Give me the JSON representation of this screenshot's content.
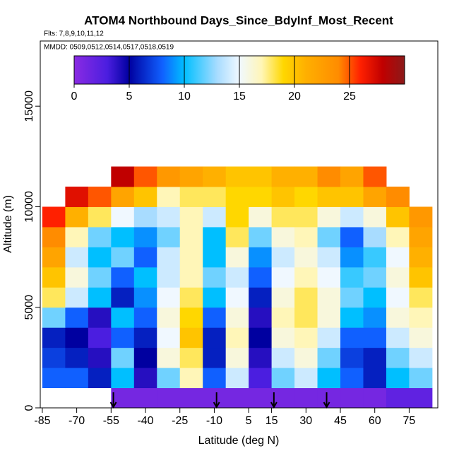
{
  "chart_data": {
    "type": "heatmap",
    "title": "ATOM4 Northbound Days_Since_BdyInf_Most_Recent",
    "subtitle": "Flts: 7,8,9,10,11,12",
    "annotation": "MMDD: 0509,0512,0514,0517,0518,0519",
    "x_label": "Latitude (deg N)",
    "y_label": "Altitude (m)",
    "x": [
      -80,
      -70,
      -60,
      -50,
      -40,
      -30,
      -20,
      -10,
      0,
      10,
      20,
      30,
      40,
      50,
      60,
      70,
      80
    ],
    "y": [
      500,
      1500,
      2500,
      3500,
      4500,
      5500,
      6500,
      7500,
      8500,
      9500,
      10500,
      11500
    ],
    "z": [
      [
        null,
        null,
        null,
        1,
        1,
        1,
        1,
        1,
        1,
        1,
        1,
        1,
        1,
        1,
        1,
        2,
        2
      ],
      [
        8,
        8,
        6,
        10,
        4,
        12,
        17,
        8,
        14,
        3,
        12,
        14,
        10,
        8,
        6,
        10,
        12
      ],
      [
        7,
        6,
        4,
        12,
        5,
        16,
        18,
        6,
        16,
        4,
        14,
        16,
        12,
        7,
        6,
        12,
        14
      ],
      [
        6,
        5,
        3,
        8,
        6,
        15,
        20,
        6,
        17,
        5,
        16,
        17,
        14,
        8,
        8,
        14,
        16
      ],
      [
        12,
        8,
        4,
        10,
        8,
        16,
        19,
        8,
        16,
        4,
        17,
        18,
        16,
        10,
        9,
        16,
        17
      ],
      [
        18,
        14,
        10,
        6,
        9,
        15,
        18,
        10,
        15,
        6,
        16,
        18,
        16,
        12,
        10,
        15,
        18
      ],
      [
        20,
        16,
        12,
        8,
        10,
        14,
        17,
        12,
        14,
        8,
        15,
        17,
        15,
        11,
        12,
        16,
        20
      ],
      [
        22,
        14,
        10,
        12,
        8,
        14,
        17,
        10,
        16,
        9,
        14,
        16,
        14,
        9,
        11,
        15,
        21
      ],
      [
        24,
        17,
        12,
        10,
        9,
        12,
        17,
        10,
        18,
        12,
        16,
        17,
        12,
        8,
        13,
        17,
        22
      ],
      [
        26,
        21,
        18,
        15,
        13,
        14,
        17,
        14,
        19,
        16,
        18,
        18,
        16,
        14,
        16,
        20,
        23
      ],
      [
        null,
        27,
        25,
        22,
        20,
        17,
        18,
        18,
        19,
        19,
        20,
        19,
        20,
        20,
        22,
        24,
        null
      ],
      [
        null,
        null,
        null,
        28,
        25,
        23,
        22,
        21,
        20,
        20,
        21,
        21,
        24,
        22,
        25,
        null,
        null
      ]
    ],
    "markers": [
      -54,
      -9,
      16,
      39
    ],
    "xlim": [
      -85.9,
      87.5
    ],
    "xticks": [
      -85,
      -70,
      -55,
      -40,
      -25,
      -10,
      5,
      15,
      30,
      45,
      60,
      75
    ],
    "ylim": [
      0,
      18240
    ],
    "yticks": [
      0,
      5000,
      10000,
      15000
    ],
    "colorbar_lim": [
      0,
      30
    ],
    "colorbar_ticks": [
      0,
      5,
      10,
      15,
      20,
      25
    ],
    "colorscale": [
      [
        0,
        "#8a2be2"
      ],
      [
        3,
        "#4b1ee0"
      ],
      [
        5,
        "#0000a0"
      ],
      [
        8,
        "#1060ff"
      ],
      [
        10,
        "#00bfff"
      ],
      [
        13,
        "#a8dcff"
      ],
      [
        15,
        "#f0f8ff"
      ],
      [
        17,
        "#fff6b8"
      ],
      [
        19,
        "#ffd700"
      ],
      [
        21,
        "#ffb000"
      ],
      [
        24,
        "#ff8c00"
      ],
      [
        26,
        "#ff2000"
      ],
      [
        28,
        "#c00000"
      ],
      [
        30,
        "#8b1a1a"
      ]
    ]
  }
}
